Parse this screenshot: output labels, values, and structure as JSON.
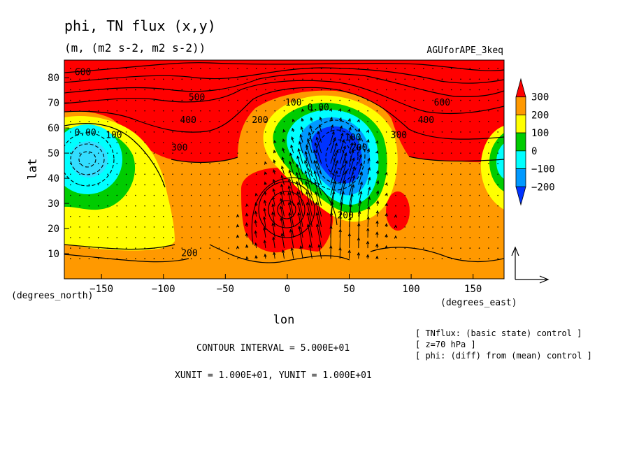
{
  "chart_data": {
    "type": "contour-map",
    "title": "phi, TN flux (x,y)",
    "subtitle": "(m, (m2 s-2, m2 s-2))",
    "experiment": "AGUforAPE_3keq",
    "xlabel": "lon",
    "ylabel": "lat",
    "x_unit_label": "(degrees_east)",
    "y_unit_label": "(degrees_north)",
    "xlim": [
      -180,
      175
    ],
    "ylim": [
      0,
      87
    ],
    "x_ticks": [
      -150,
      -100,
      -50,
      0,
      50,
      100,
      150
    ],
    "x_tick_labels": [
      "−150",
      "−100",
      "−50",
      "0",
      "50",
      "100",
      "150"
    ],
    "y_ticks": [
      10,
      20,
      30,
      40,
      50,
      60,
      70,
      80
    ],
    "y_tick_labels": [
      "10",
      "20",
      "30",
      "40",
      "50",
      "60",
      "70",
      "80"
    ],
    "colorbar": {
      "levels": [
        300,
        200,
        100,
        0,
        -100,
        -200
      ],
      "labels": [
        "300",
        "200",
        "100",
        "0",
        "−100",
        "−200"
      ],
      "colors": [
        "#ff0000",
        "#ff9900",
        "#ffff00",
        "#00cc00",
        "#00ffff",
        "#0099ff",
        "#0033ff"
      ]
    },
    "contour_labels": [
      {
        "text": "600",
        "lon": -165,
        "lat": 81
      },
      {
        "text": "500",
        "lon": -73,
        "lat": 71
      },
      {
        "text": "400",
        "lon": -80,
        "lat": 62
      },
      {
        "text": "300",
        "lon": -87,
        "lat": 51
      },
      {
        "text": "0.00",
        "lon": -163,
        "lat": 57
      },
      {
        "text": "100",
        "lon": -140,
        "lat": 56
      },
      {
        "text": "200",
        "lon": -22,
        "lat": 62
      },
      {
        "text": "100",
        "lon": 5,
        "lat": 69
      },
      {
        "text": "0.00",
        "lon": 25,
        "lat": 67
      },
      {
        "text": "100",
        "lon": 53,
        "lat": 55
      },
      {
        "text": "200",
        "lon": 58,
        "lat": 51
      },
      {
        "text": "300",
        "lon": 90,
        "lat": 56
      },
      {
        "text": "400",
        "lon": 112,
        "lat": 62
      },
      {
        "text": "600",
        "lon": 125,
        "lat": 69
      },
      {
        "text": "200",
        "lon": 47,
        "lat": 24
      },
      {
        "text": "200",
        "lon": -79,
        "lat": 9
      }
    ],
    "annotations": {
      "contour_interval": "CONTOUR INTERVAL = 5.000E+01",
      "units_line": "XUNIT = 1.000E+01, YUNIT = 1.000E+01",
      "notes": [
        "[ TNflux: (basic state) control ]",
        "[ z=70 hPa ]",
        "[ phi: (diff) from (mean) control ]"
      ]
    }
  }
}
